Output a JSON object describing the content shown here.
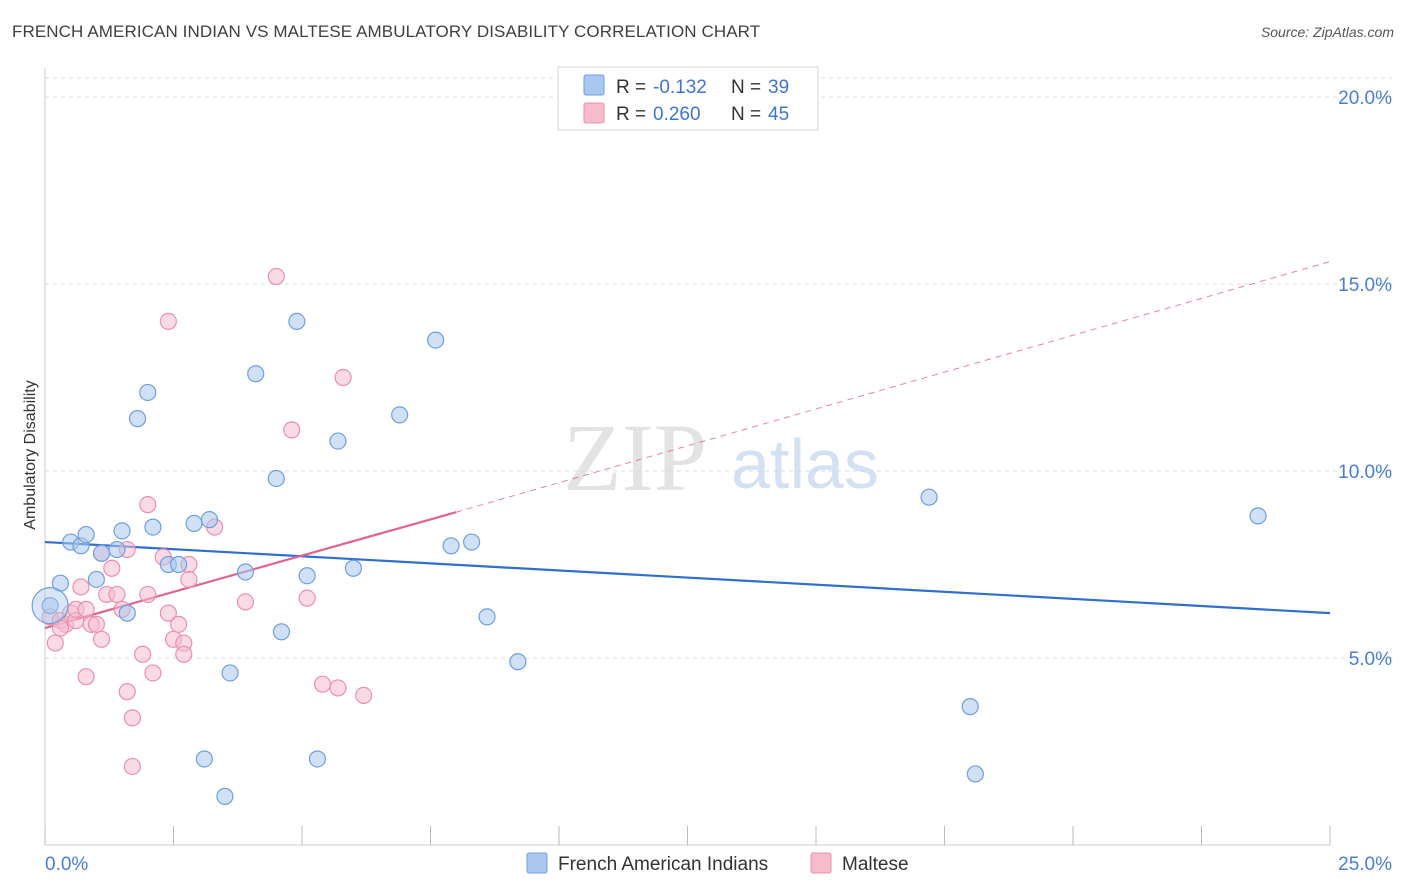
{
  "header": {
    "title": "FRENCH AMERICAN INDIAN VS MALTESE AMBULATORY DISABILITY CORRELATION CHART",
    "source": "Source: ZipAtlas.com"
  },
  "watermark": {
    "zip": "ZIP",
    "atlas": "atlas"
  },
  "colors": {
    "blue_fill": "#aac8ef",
    "blue_stroke": "#6f9fdc",
    "blue_line": "#2f6fce",
    "pink_fill": "#f6bccd",
    "pink_stroke": "#ec8fab",
    "pink_line": "#e0648f",
    "tick_text": "#4a7fd0",
    "grid": "#dddddd"
  },
  "legend": {
    "rows": [
      {
        "r_label": "R =",
        "r_value": "-0.132",
        "n_label": "N =",
        "n_value": "39"
      },
      {
        "r_label": "R =",
        "r_value": "0.260",
        "n_label": "N =",
        "n_value": "45"
      }
    ]
  },
  "chart_data": {
    "type": "scatter",
    "title": "FRENCH AMERICAN INDIAN VS MALTESE AMBULATORY DISABILITY CORRELATION CHART",
    "xlabel": "",
    "ylabel": "Ambulatory Disability",
    "xlim": [
      0,
      25
    ],
    "ylim": [
      0,
      20
    ],
    "x_tick_labels": [
      "0.0%",
      "25.0%"
    ],
    "y_ticks": [
      5,
      10,
      15,
      20
    ],
    "y_tick_labels": [
      "5.0%",
      "10.0%",
      "15.0%",
      "20.0%"
    ],
    "grid": true,
    "legend_placement": "top-center",
    "series": [
      {
        "name": "French American Indians",
        "R": -0.132,
        "N": 39,
        "trend": {
          "x": [
            0,
            25
          ],
          "y": [
            8.1,
            6.2
          ]
        },
        "points": [
          {
            "x": 0.1,
            "y": 6.4
          },
          {
            "x": 0.3,
            "y": 7.0
          },
          {
            "x": 0.5,
            "y": 8.1
          },
          {
            "x": 0.7,
            "y": 8.0
          },
          {
            "x": 0.8,
            "y": 8.3
          },
          {
            "x": 1.0,
            "y": 7.1
          },
          {
            "x": 1.1,
            "y": 7.8
          },
          {
            "x": 1.4,
            "y": 7.9
          },
          {
            "x": 1.5,
            "y": 8.4
          },
          {
            "x": 1.6,
            "y": 6.2
          },
          {
            "x": 1.8,
            "y": 11.4
          },
          {
            "x": 2.0,
            "y": 12.1
          },
          {
            "x": 2.1,
            "y": 8.5
          },
          {
            "x": 2.4,
            "y": 7.5
          },
          {
            "x": 2.6,
            "y": 7.5
          },
          {
            "x": 2.9,
            "y": 8.6
          },
          {
            "x": 3.1,
            "y": 2.3
          },
          {
            "x": 3.2,
            "y": 8.7
          },
          {
            "x": 3.5,
            "y": 1.3
          },
          {
            "x": 3.6,
            "y": 4.6
          },
          {
            "x": 3.9,
            "y": 7.3
          },
          {
            "x": 4.1,
            "y": 12.6
          },
          {
            "x": 4.5,
            "y": 9.8
          },
          {
            "x": 4.6,
            "y": 5.7
          },
          {
            "x": 4.9,
            "y": 14.0
          },
          {
            "x": 5.1,
            "y": 7.2
          },
          {
            "x": 5.3,
            "y": 2.3
          },
          {
            "x": 5.7,
            "y": 10.8
          },
          {
            "x": 6.0,
            "y": 7.4
          },
          {
            "x": 6.9,
            "y": 11.5
          },
          {
            "x": 7.6,
            "y": 13.5
          },
          {
            "x": 7.9,
            "y": 8.0
          },
          {
            "x": 8.3,
            "y": 8.1
          },
          {
            "x": 8.6,
            "y": 6.1
          },
          {
            "x": 9.2,
            "y": 4.9
          },
          {
            "x": 17.2,
            "y": 9.3
          },
          {
            "x": 18.0,
            "y": 3.7
          },
          {
            "x": 18.1,
            "y": 1.9
          },
          {
            "x": 23.6,
            "y": 8.8
          }
        ]
      },
      {
        "name": "Maltese",
        "R": 0.26,
        "N": 45,
        "trend": {
          "x": [
            0,
            8.0
          ],
          "y": [
            5.8,
            8.9
          ]
        },
        "trend_extended": {
          "x": [
            8.0,
            25
          ],
          "y": [
            8.9,
            15.6
          ]
        },
        "points": [
          {
            "x": 0.1,
            "y": 6.1
          },
          {
            "x": 0.2,
            "y": 5.4
          },
          {
            "x": 0.3,
            "y": 6.0
          },
          {
            "x": 0.4,
            "y": 5.9
          },
          {
            "x": 0.5,
            "y": 6.2
          },
          {
            "x": 0.6,
            "y": 6.0
          },
          {
            "x": 0.6,
            "y": 6.3
          },
          {
            "x": 0.7,
            "y": 6.9
          },
          {
            "x": 0.8,
            "y": 6.3
          },
          {
            "x": 0.8,
            "y": 4.5
          },
          {
            "x": 0.9,
            "y": 5.9
          },
          {
            "x": 1.0,
            "y": 5.9
          },
          {
            "x": 1.1,
            "y": 7.8
          },
          {
            "x": 1.1,
            "y": 5.5
          },
          {
            "x": 1.2,
            "y": 6.7
          },
          {
            "x": 1.3,
            "y": 7.4
          },
          {
            "x": 1.4,
            "y": 6.7
          },
          {
            "x": 1.5,
            "y": 6.3
          },
          {
            "x": 1.6,
            "y": 7.9
          },
          {
            "x": 1.6,
            "y": 4.1
          },
          {
            "x": 1.7,
            "y": 2.1
          },
          {
            "x": 1.7,
            "y": 3.4
          },
          {
            "x": 1.9,
            "y": 5.1
          },
          {
            "x": 2.0,
            "y": 6.7
          },
          {
            "x": 2.0,
            "y": 9.1
          },
          {
            "x": 2.1,
            "y": 4.6
          },
          {
            "x": 2.3,
            "y": 7.7
          },
          {
            "x": 2.4,
            "y": 14.0
          },
          {
            "x": 2.4,
            "y": 6.2
          },
          {
            "x": 2.5,
            "y": 5.5
          },
          {
            "x": 2.6,
            "y": 5.9
          },
          {
            "x": 2.7,
            "y": 5.4
          },
          {
            "x": 2.7,
            "y": 5.1
          },
          {
            "x": 2.8,
            "y": 7.5
          },
          {
            "x": 2.8,
            "y": 7.1
          },
          {
            "x": 3.3,
            "y": 8.5
          },
          {
            "x": 3.9,
            "y": 6.5
          },
          {
            "x": 4.5,
            "y": 15.2
          },
          {
            "x": 4.8,
            "y": 11.1
          },
          {
            "x": 5.1,
            "y": 6.6
          },
          {
            "x": 5.4,
            "y": 4.3
          },
          {
            "x": 5.7,
            "y": 4.2
          },
          {
            "x": 5.8,
            "y": 12.5
          },
          {
            "x": 6.2,
            "y": 4.0
          },
          {
            "x": 0.3,
            "y": 5.8
          }
        ]
      }
    ]
  }
}
